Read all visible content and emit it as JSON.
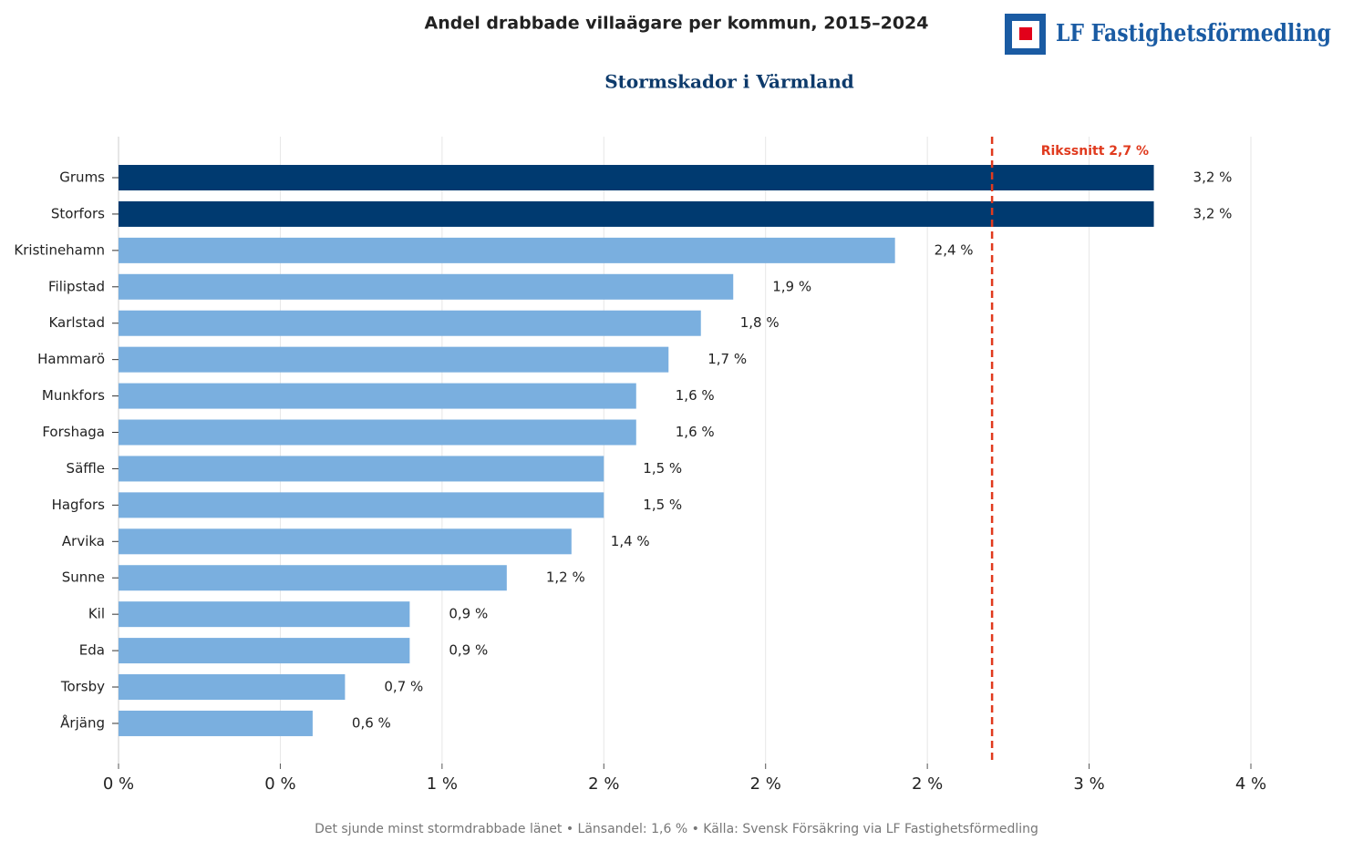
{
  "chart_data": {
    "type": "hbar",
    "title": "Andel drabbade villaägare per kommun, 2015–2024",
    "subtitle": "Stormskador i Värmland",
    "brand": "LF Fastighetsförmedling",
    "categories": [
      "Grums",
      "Storfors",
      "Kristinehamn",
      "Filipstad",
      "Karlstad",
      "Hammarö",
      "Munkfors",
      "Forshaga",
      "Säffle",
      "Hagfors",
      "Arvika",
      "Sunne",
      "Kil",
      "Eda",
      "Torsby",
      "Årjäng"
    ],
    "values": [
      3.2,
      3.2,
      2.4,
      1.9,
      1.8,
      1.7,
      1.6,
      1.6,
      1.5,
      1.5,
      1.4,
      1.2,
      0.9,
      0.9,
      0.7,
      0.6
    ],
    "value_labels": [
      "3,2 %",
      "3,2 %",
      "2,4 %",
      "1,9 %",
      "1,8 %",
      "1,7 %",
      "1,6 %",
      "1,6 %",
      "1,5 %",
      "1,5 %",
      "1,4 %",
      "1,2 %",
      "0,9 %",
      "0,9 %",
      "0,7 %",
      "0,6 %"
    ],
    "colors": [
      "#003a70",
      "#003a70",
      "#7aafdf",
      "#7aafdf",
      "#7aafdf",
      "#7aafdf",
      "#7aafdf",
      "#7aafdf",
      "#7aafdf",
      "#7aafdf",
      "#7aafdf",
      "#7aafdf",
      "#7aafdf",
      "#7aafdf",
      "#7aafdf",
      "#7aafdf"
    ],
    "xlim": [
      0,
      3.5
    ],
    "xticks": [
      {
        "value": 0,
        "label": "0 %"
      },
      {
        "value": 0.5,
        "label": "0 %"
      },
      {
        "value": 1,
        "label": "1 %"
      },
      {
        "value": 1.5,
        "label": "2 %"
      },
      {
        "value": 2,
        "label": "2 %"
      },
      {
        "value": 2.5,
        "label": "2 %"
      },
      {
        "value": 3,
        "label": "3 %"
      },
      {
        "value": 3.5,
        "label": "4 %"
      }
    ],
    "grid": true,
    "reference_line": {
      "value": 2.7,
      "label": "Rikssnitt 2,7 %",
      "color": "#e03a1e"
    },
    "footer": "Det sjunde minst stormdrabbade länet  •  Länsandel: 1,6 %  •  Källa: Svensk Försäkring via LF Fastighetsförmedling"
  }
}
